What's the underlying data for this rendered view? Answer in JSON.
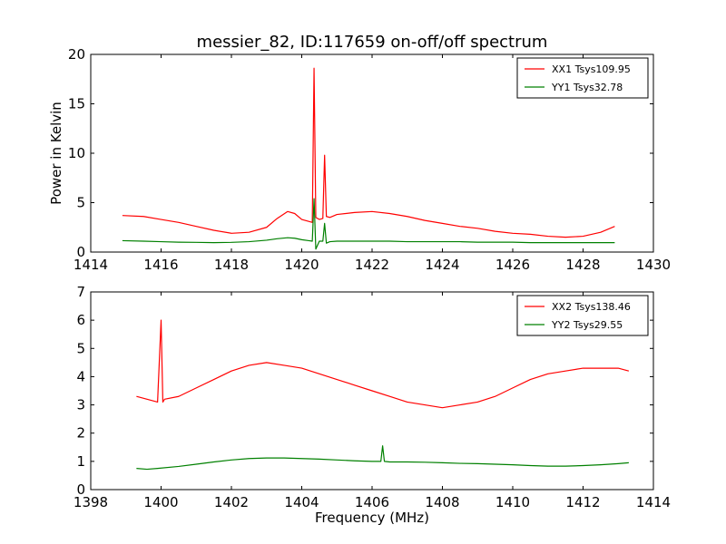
{
  "figure": {
    "background": "#ffffff"
  },
  "chart_data": [
    {
      "type": "line",
      "title": "messier_82, ID:117659 on-off/off spectrum",
      "xlabel": "",
      "ylabel": "Power in Kelvin",
      "xlim": [
        1414,
        1430
      ],
      "ylim": [
        0,
        20
      ],
      "xticks": [
        1414,
        1416,
        1418,
        1420,
        1422,
        1424,
        1426,
        1428,
        1430
      ],
      "yticks": [
        0,
        5,
        10,
        15,
        20
      ],
      "legend_position": "top-right",
      "series": [
        {
          "name": "XX1 Tsys109.95",
          "color": "#ff0000",
          "x": [
            1414.9,
            1415.5,
            1416.0,
            1416.5,
            1417.0,
            1417.5,
            1418.0,
            1418.5,
            1419.0,
            1419.3,
            1419.6,
            1419.8,
            1420.0,
            1420.2,
            1420.3,
            1420.35,
            1420.4,
            1420.5,
            1420.6,
            1420.65,
            1420.7,
            1420.8,
            1421.0,
            1421.5,
            1422.0,
            1422.5,
            1423.0,
            1423.5,
            1424.0,
            1424.5,
            1425.0,
            1425.5,
            1426.0,
            1426.5,
            1427.0,
            1427.5,
            1428.0,
            1428.5,
            1428.9
          ],
          "values": [
            3.7,
            3.6,
            3.3,
            3.0,
            2.6,
            2.2,
            1.9,
            2.0,
            2.5,
            3.4,
            4.1,
            3.9,
            3.3,
            3.1,
            3.0,
            18.6,
            3.5,
            3.3,
            3.4,
            9.8,
            3.6,
            3.5,
            3.8,
            4.0,
            4.1,
            3.9,
            3.6,
            3.2,
            2.9,
            2.6,
            2.4,
            2.1,
            1.9,
            1.8,
            1.6,
            1.5,
            1.6,
            2.0,
            2.6
          ]
        },
        {
          "name": "YY1 Tsys32.78",
          "color": "#008000",
          "x": [
            1414.9,
            1415.5,
            1416.0,
            1416.5,
            1417.0,
            1417.5,
            1418.0,
            1418.5,
            1419.0,
            1419.3,
            1419.6,
            1419.8,
            1420.0,
            1420.2,
            1420.3,
            1420.35,
            1420.4,
            1420.5,
            1420.6,
            1420.65,
            1420.7,
            1420.8,
            1421.0,
            1421.5,
            1422.0,
            1422.5,
            1423.0,
            1423.5,
            1424.0,
            1424.5,
            1425.0,
            1425.5,
            1426.0,
            1426.5,
            1427.0,
            1427.5,
            1428.0,
            1428.5,
            1428.9
          ],
          "values": [
            1.15,
            1.1,
            1.05,
            1.0,
            0.98,
            0.95,
            0.98,
            1.05,
            1.2,
            1.35,
            1.45,
            1.4,
            1.25,
            1.15,
            1.1,
            5.4,
            0.3,
            1.1,
            1.1,
            2.9,
            0.9,
            1.05,
            1.1,
            1.1,
            1.1,
            1.1,
            1.05,
            1.05,
            1.05,
            1.05,
            1.0,
            1.0,
            1.0,
            0.95,
            0.95,
            0.95,
            0.95,
            0.95,
            0.95
          ]
        }
      ]
    },
    {
      "type": "line",
      "title": "",
      "xlabel": "Frequency (MHz)",
      "ylabel": "",
      "xlim": [
        1398,
        1414
      ],
      "ylim": [
        0,
        7
      ],
      "xticks": [
        1398,
        1400,
        1402,
        1404,
        1406,
        1408,
        1410,
        1412,
        1414
      ],
      "yticks": [
        0,
        1,
        2,
        3,
        4,
        5,
        6,
        7
      ],
      "legend_position": "top-right",
      "series": [
        {
          "name": "XX2 Tsys138.46",
          "color": "#ff0000",
          "x": [
            1399.3,
            1399.6,
            1399.9,
            1400.0,
            1400.05,
            1400.1,
            1400.5,
            1401.0,
            1401.5,
            1402.0,
            1402.5,
            1403.0,
            1403.5,
            1404.0,
            1404.5,
            1405.0,
            1405.5,
            1406.0,
            1406.5,
            1407.0,
            1407.5,
            1408.0,
            1408.5,
            1409.0,
            1409.5,
            1410.0,
            1410.5,
            1411.0,
            1411.5,
            1412.0,
            1412.5,
            1413.0,
            1413.3
          ],
          "values": [
            3.3,
            3.2,
            3.1,
            6.0,
            3.1,
            3.2,
            3.3,
            3.6,
            3.9,
            4.2,
            4.4,
            4.5,
            4.4,
            4.3,
            4.1,
            3.9,
            3.7,
            3.5,
            3.3,
            3.1,
            3.0,
            2.9,
            3.0,
            3.1,
            3.3,
            3.6,
            3.9,
            4.1,
            4.2,
            4.3,
            4.3,
            4.3,
            4.2
          ]
        },
        {
          "name": "YY2 Tsys29.55",
          "color": "#008000",
          "x": [
            1399.3,
            1399.6,
            1399.9,
            1400.5,
            1401.0,
            1401.5,
            1402.0,
            1402.5,
            1403.0,
            1403.5,
            1404.0,
            1404.5,
            1405.0,
            1405.5,
            1406.0,
            1406.25,
            1406.3,
            1406.35,
            1406.5,
            1407.0,
            1407.5,
            1408.0,
            1408.5,
            1409.0,
            1409.5,
            1410.0,
            1410.5,
            1411.0,
            1411.5,
            1412.0,
            1412.5,
            1413.0,
            1413.3
          ],
          "values": [
            0.75,
            0.72,
            0.75,
            0.82,
            0.9,
            0.98,
            1.05,
            1.1,
            1.12,
            1.12,
            1.1,
            1.08,
            1.05,
            1.02,
            1.0,
            1.0,
            1.55,
            1.0,
            0.98,
            0.98,
            0.97,
            0.95,
            0.93,
            0.92,
            0.9,
            0.88,
            0.85,
            0.83,
            0.83,
            0.85,
            0.88,
            0.92,
            0.95
          ]
        }
      ]
    }
  ]
}
